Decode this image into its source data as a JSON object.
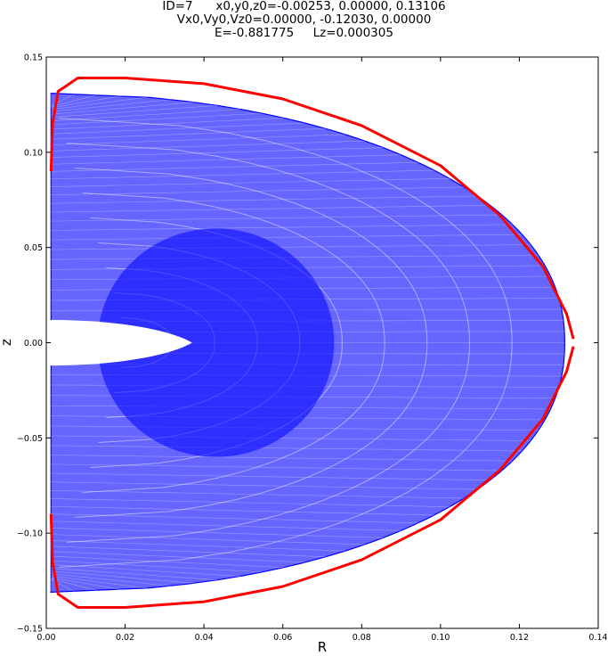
{
  "title_lines": [
    "ID=7      x0,y0,z0=-0.00253, 0.00000, 0.13106",
    "Vx0,Vy0,Vz0=0.00000, -0.12030, 0.00000",
    "E=-0.881775     Lz=0.000305"
  ],
  "chart_data": {
    "type": "line",
    "title": "ID=7      x0,y0,z0=-0.00253, 0.00000, 0.13106 / Vx0,Vy0,Vz0=0.00000, -0.12030, 0.00000 / E=-0.881775     Lz=0.000305",
    "xlabel": "R",
    "ylabel": "z",
    "xlim": [
      0.0,
      0.14
    ],
    "ylim": [
      -0.15,
      0.15
    ],
    "xticks": [
      "0.00",
      "0.02",
      "0.04",
      "0.06",
      "0.08",
      "0.10",
      "0.12",
      "0.14"
    ],
    "yticks": [
      "0.15",
      "0.10",
      "0.05",
      "0.00",
      "−0.05",
      "−0.10",
      "−0.15"
    ],
    "grid": false,
    "series": [
      {
        "kind": "orbit",
        "color": "#0000ff",
        "envelope": {
          "R_min": 0.0012,
          "R_max": 0.1315,
          "z_max": 0.131,
          "inner_hole_tip_R": 0.037,
          "inner_hole_halfwidth_z": 0.012
        }
      },
      {
        "kind": "zero-velocity-curve",
        "color": "#ff0000",
        "points": [
          [
            0.0012,
            0.09
          ],
          [
            0.0016,
            0.115
          ],
          [
            0.003,
            0.132
          ],
          [
            0.008,
            0.139
          ],
          [
            0.02,
            0.139
          ],
          [
            0.04,
            0.136
          ],
          [
            0.06,
            0.128
          ],
          [
            0.08,
            0.114
          ],
          [
            0.1,
            0.093
          ],
          [
            0.115,
            0.067
          ],
          [
            0.126,
            0.04
          ],
          [
            0.132,
            0.015
          ],
          [
            0.1337,
            0.002
          ]
        ],
        "mirror_z": true
      }
    ]
  }
}
